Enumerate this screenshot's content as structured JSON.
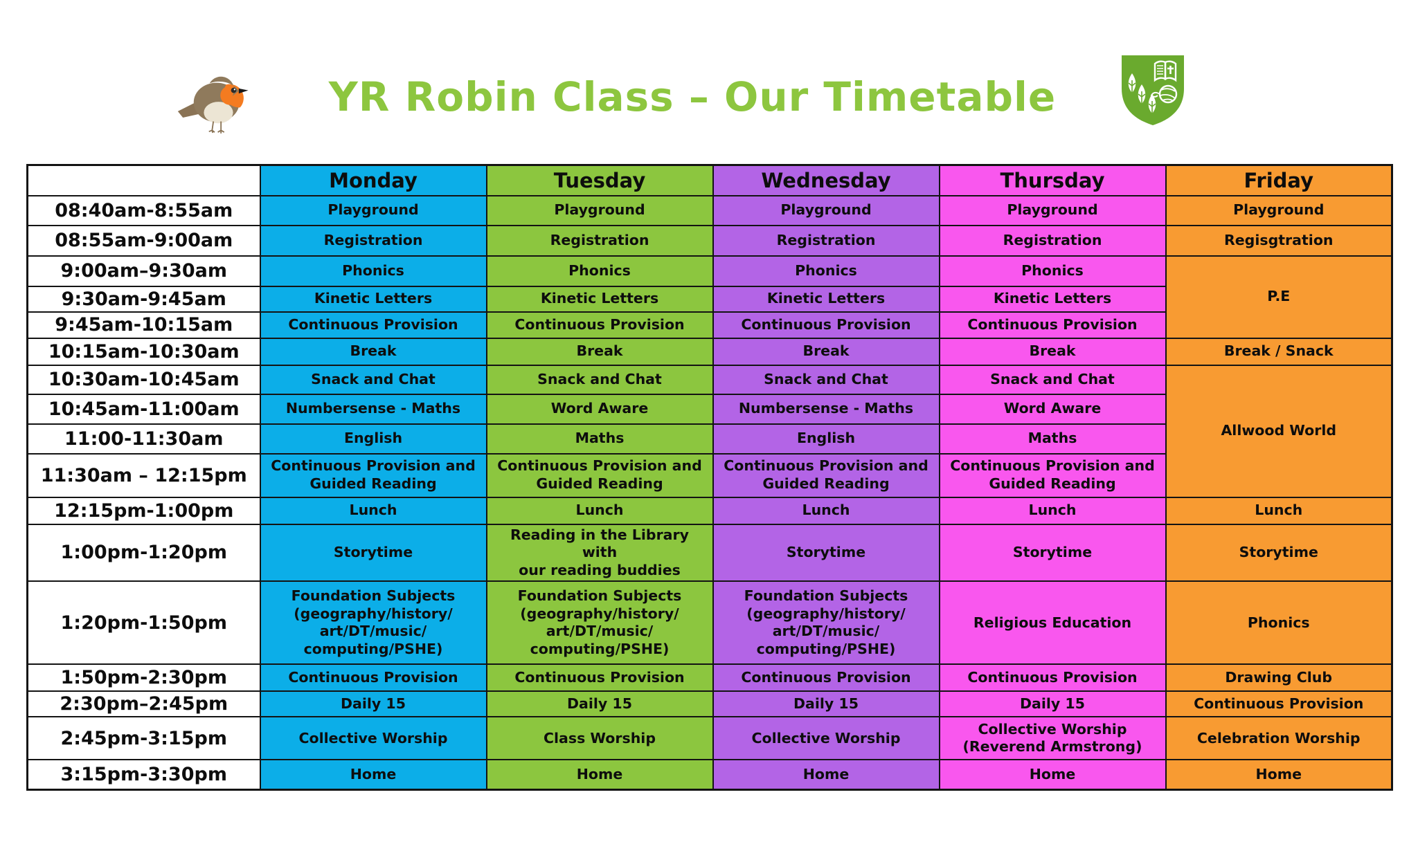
{
  "page": {
    "title": "YR Robin Class – Our Timetable",
    "title_color": "#8dc63f"
  },
  "logo": {
    "shield_color": "#6aaa2e",
    "elements": [
      "leaf-trees",
      "open-book-with-cross",
      "yarn-ball"
    ]
  },
  "robin": {
    "body_color": "#8a7355",
    "breast_color": "#f47b20",
    "belly_color": "#ece5d4"
  },
  "timetable": {
    "days": [
      {
        "label": "Monday",
        "color": "#0caee8"
      },
      {
        "label": "Tuesday",
        "color": "#8cc63f"
      },
      {
        "label": "Wednesday",
        "color": "#b364e6"
      },
      {
        "label": "Thursday",
        "color": "#f957ee"
      },
      {
        "label": "Friday",
        "color": "#f89b32"
      }
    ],
    "rows": [
      {
        "time": "08:40am-8:55am",
        "cells": [
          {
            "day": 0,
            "text": "Playground"
          },
          {
            "day": 1,
            "text": "Playground"
          },
          {
            "day": 2,
            "text": "Playground"
          },
          {
            "day": 3,
            "text": "Playground"
          },
          {
            "day": 4,
            "text": "Playground"
          }
        ]
      },
      {
        "time": "08:55am-9:00am",
        "cells": [
          {
            "day": 0,
            "text": "Registration"
          },
          {
            "day": 1,
            "text": "Registration"
          },
          {
            "day": 2,
            "text": "Registration"
          },
          {
            "day": 3,
            "text": "Registration"
          },
          {
            "day": 4,
            "text": "Regisgtration"
          }
        ]
      },
      {
        "time": "9:00am–9:30am",
        "cells": [
          {
            "day": 0,
            "text": "Phonics"
          },
          {
            "day": 1,
            "text": "Phonics"
          },
          {
            "day": 2,
            "text": "Phonics"
          },
          {
            "day": 3,
            "text": "Phonics"
          },
          {
            "day": 4,
            "text": "P.E",
            "span": 3,
            "align": "top"
          }
        ]
      },
      {
        "time": "9:30am-9:45am",
        "cells": [
          {
            "day": 0,
            "text": "Kinetic Letters"
          },
          {
            "day": 1,
            "text": "Kinetic Letters"
          },
          {
            "day": 2,
            "text": "Kinetic Letters"
          },
          {
            "day": 3,
            "text": "Kinetic Letters"
          }
        ]
      },
      {
        "time": "9:45am-10:15am",
        "cells": [
          {
            "day": 0,
            "text": "Continuous Provision"
          },
          {
            "day": 1,
            "text": "Continuous Provision"
          },
          {
            "day": 2,
            "text": "Continuous Provision"
          },
          {
            "day": 3,
            "text": "Continuous Provision"
          }
        ]
      },
      {
        "time": "10:15am-10:30am",
        "cells": [
          {
            "day": 0,
            "text": "Break"
          },
          {
            "day": 1,
            "text": "Break"
          },
          {
            "day": 2,
            "text": "Break"
          },
          {
            "day": 3,
            "text": "Break"
          },
          {
            "day": 4,
            "text": "Break / Snack"
          }
        ]
      },
      {
        "time": "10:30am-10:45am",
        "cells": [
          {
            "day": 0,
            "text": "Snack and Chat"
          },
          {
            "day": 1,
            "text": "Snack and Chat"
          },
          {
            "day": 2,
            "text": "Snack and Chat"
          },
          {
            "day": 3,
            "text": "Snack and Chat"
          },
          {
            "day": 4,
            "text": "Allwood World",
            "span": 4
          }
        ]
      },
      {
        "time": "10:45am-11:00am",
        "cells": [
          {
            "day": 0,
            "text": "Numbersense - Maths"
          },
          {
            "day": 1,
            "text": "Word Aware"
          },
          {
            "day": 2,
            "text": "Numbersense - Maths"
          },
          {
            "day": 3,
            "text": "Word Aware"
          }
        ]
      },
      {
        "time": "11:00-11:30am",
        "cells": [
          {
            "day": 0,
            "text": "English"
          },
          {
            "day": 1,
            "text": "Maths"
          },
          {
            "day": 2,
            "text": "English"
          },
          {
            "day": 3,
            "text": "Maths"
          }
        ]
      },
      {
        "time": "11:30am – 12:15pm",
        "cells": [
          {
            "day": 0,
            "text": "Continuous Provision and\nGuided Reading"
          },
          {
            "day": 1,
            "text": "Continuous Provision and\nGuided Reading"
          },
          {
            "day": 2,
            "text": "Continuous Provision and\nGuided Reading"
          },
          {
            "day": 3,
            "text": "Continuous Provision and\nGuided Reading"
          }
        ]
      },
      {
        "time": "12:15pm-1:00pm",
        "cells": [
          {
            "day": 0,
            "text": "Lunch"
          },
          {
            "day": 1,
            "text": "Lunch"
          },
          {
            "day": 2,
            "text": "Lunch"
          },
          {
            "day": 3,
            "text": "Lunch"
          },
          {
            "day": 4,
            "text": "Lunch"
          }
        ]
      },
      {
        "time": "1:00pm-1:20pm",
        "cells": [
          {
            "day": 0,
            "text": "Storytime"
          },
          {
            "day": 1,
            "text": "Reading in the Library with\nour reading buddies"
          },
          {
            "day": 2,
            "text": "Storytime"
          },
          {
            "day": 3,
            "text": "Storytime"
          },
          {
            "day": 4,
            "text": "Storytime"
          }
        ]
      },
      {
        "time": "1:20pm-1:50pm",
        "cells": [
          {
            "day": 0,
            "text": "Foundation Subjects\n(geography/history/\nart/DT/music/\ncomputing/PSHE)"
          },
          {
            "day": 1,
            "text": "Foundation Subjects\n(geography/history/\nart/DT/music/\ncomputing/PSHE)"
          },
          {
            "day": 2,
            "text": "Foundation Subjects\n(geography/history/\nart/DT/music/\ncomputing/PSHE)"
          },
          {
            "day": 3,
            "text": "Religious Education"
          },
          {
            "day": 4,
            "text": "Phonics",
            "align": "top"
          }
        ]
      },
      {
        "time": "1:50pm-2:30pm",
        "cells": [
          {
            "day": 0,
            "text": "Continuous Provision"
          },
          {
            "day": 1,
            "text": "Continuous Provision"
          },
          {
            "day": 2,
            "text": "Continuous Provision"
          },
          {
            "day": 3,
            "text": "Continuous Provision"
          },
          {
            "day": 4,
            "text": "Drawing Club"
          }
        ]
      },
      {
        "time": "2:30pm–2:45pm",
        "cells": [
          {
            "day": 0,
            "text": "Daily 15"
          },
          {
            "day": 1,
            "text": "Daily 15"
          },
          {
            "day": 2,
            "text": "Daily 15"
          },
          {
            "day": 3,
            "text": "Daily 15"
          },
          {
            "day": 4,
            "text": "Continuous Provision"
          }
        ]
      },
      {
        "time": "2:45pm-3:15pm",
        "cells": [
          {
            "day": 0,
            "text": "Collective Worship"
          },
          {
            "day": 1,
            "text": "Class Worship"
          },
          {
            "day": 2,
            "text": "Collective Worship"
          },
          {
            "day": 3,
            "text": "Collective Worship\n(Reverend Armstrong)"
          },
          {
            "day": 4,
            "text": "Celebration Worship"
          }
        ]
      },
      {
        "time": "3:15pm-3:30pm",
        "cells": [
          {
            "day": 0,
            "text": "Home"
          },
          {
            "day": 1,
            "text": "Home"
          },
          {
            "day": 2,
            "text": "Home"
          },
          {
            "day": 3,
            "text": "Home"
          },
          {
            "day": 4,
            "text": "Home"
          }
        ]
      }
    ]
  }
}
